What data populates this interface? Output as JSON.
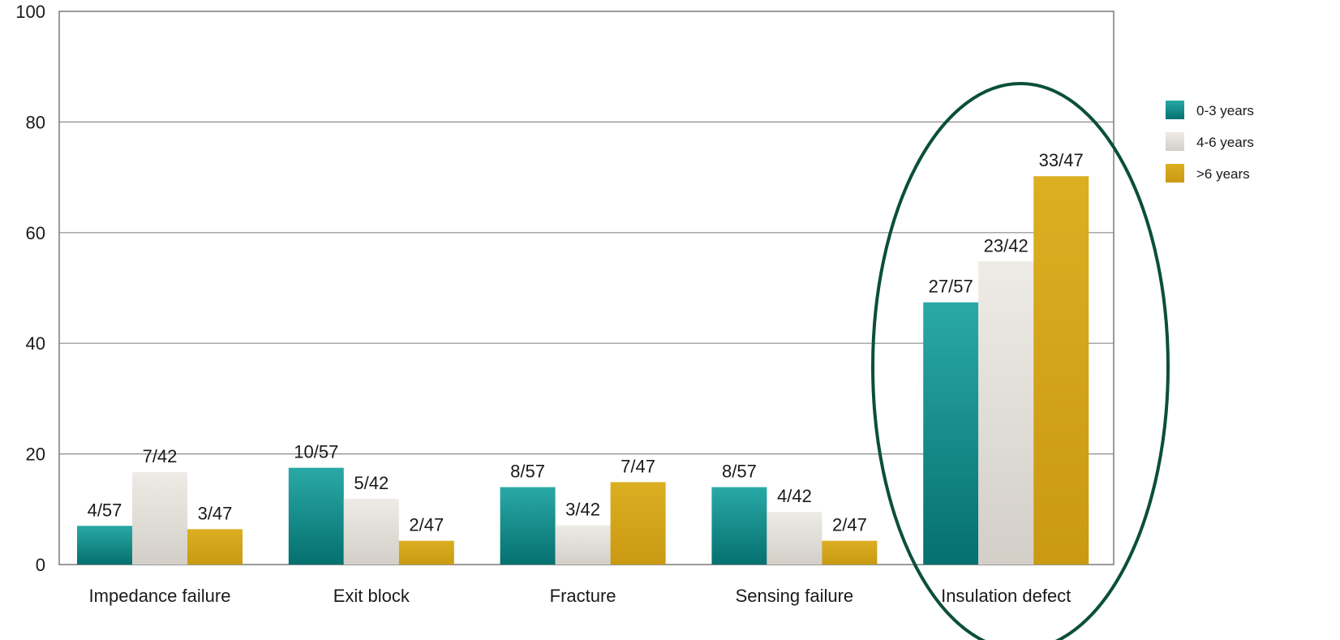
{
  "chart_data": {
    "type": "bar",
    "categories": [
      "Impedance failure",
      "Exit block",
      "Fracture",
      "Sensing failure",
      "Insulation defect"
    ],
    "series": [
      {
        "name": "0-3 years",
        "color": "#0f8a87",
        "values": [
          7.0,
          17.5,
          14.0,
          14.0,
          47.4
        ],
        "labels": [
          "4/57",
          "10/57",
          "8/57",
          "8/57",
          "27/57"
        ]
      },
      {
        "name": "4-6 years",
        "color": "#e3e0da",
        "values": [
          16.7,
          11.9,
          7.1,
          9.5,
          54.8
        ],
        "labels": [
          "7/42",
          "5/42",
          "3/42",
          "4/42",
          "23/42"
        ]
      },
      {
        "name": ">6 years",
        "color": "#d6a617",
        "values": [
          6.4,
          4.3,
          14.9,
          4.3,
          70.2
        ],
        "labels": [
          "3/47",
          "2/47",
          "7/47",
          "2/47",
          "33/47"
        ]
      }
    ],
    "ylim": [
      0,
      100
    ],
    "yticks": [
      "0",
      "20",
      "40",
      "60",
      "80",
      "100"
    ],
    "grid": true,
    "legend_position": "right",
    "highlight": {
      "category": "Insulation defect",
      "shape": "ellipse",
      "color": "#0b4f3a"
    }
  }
}
